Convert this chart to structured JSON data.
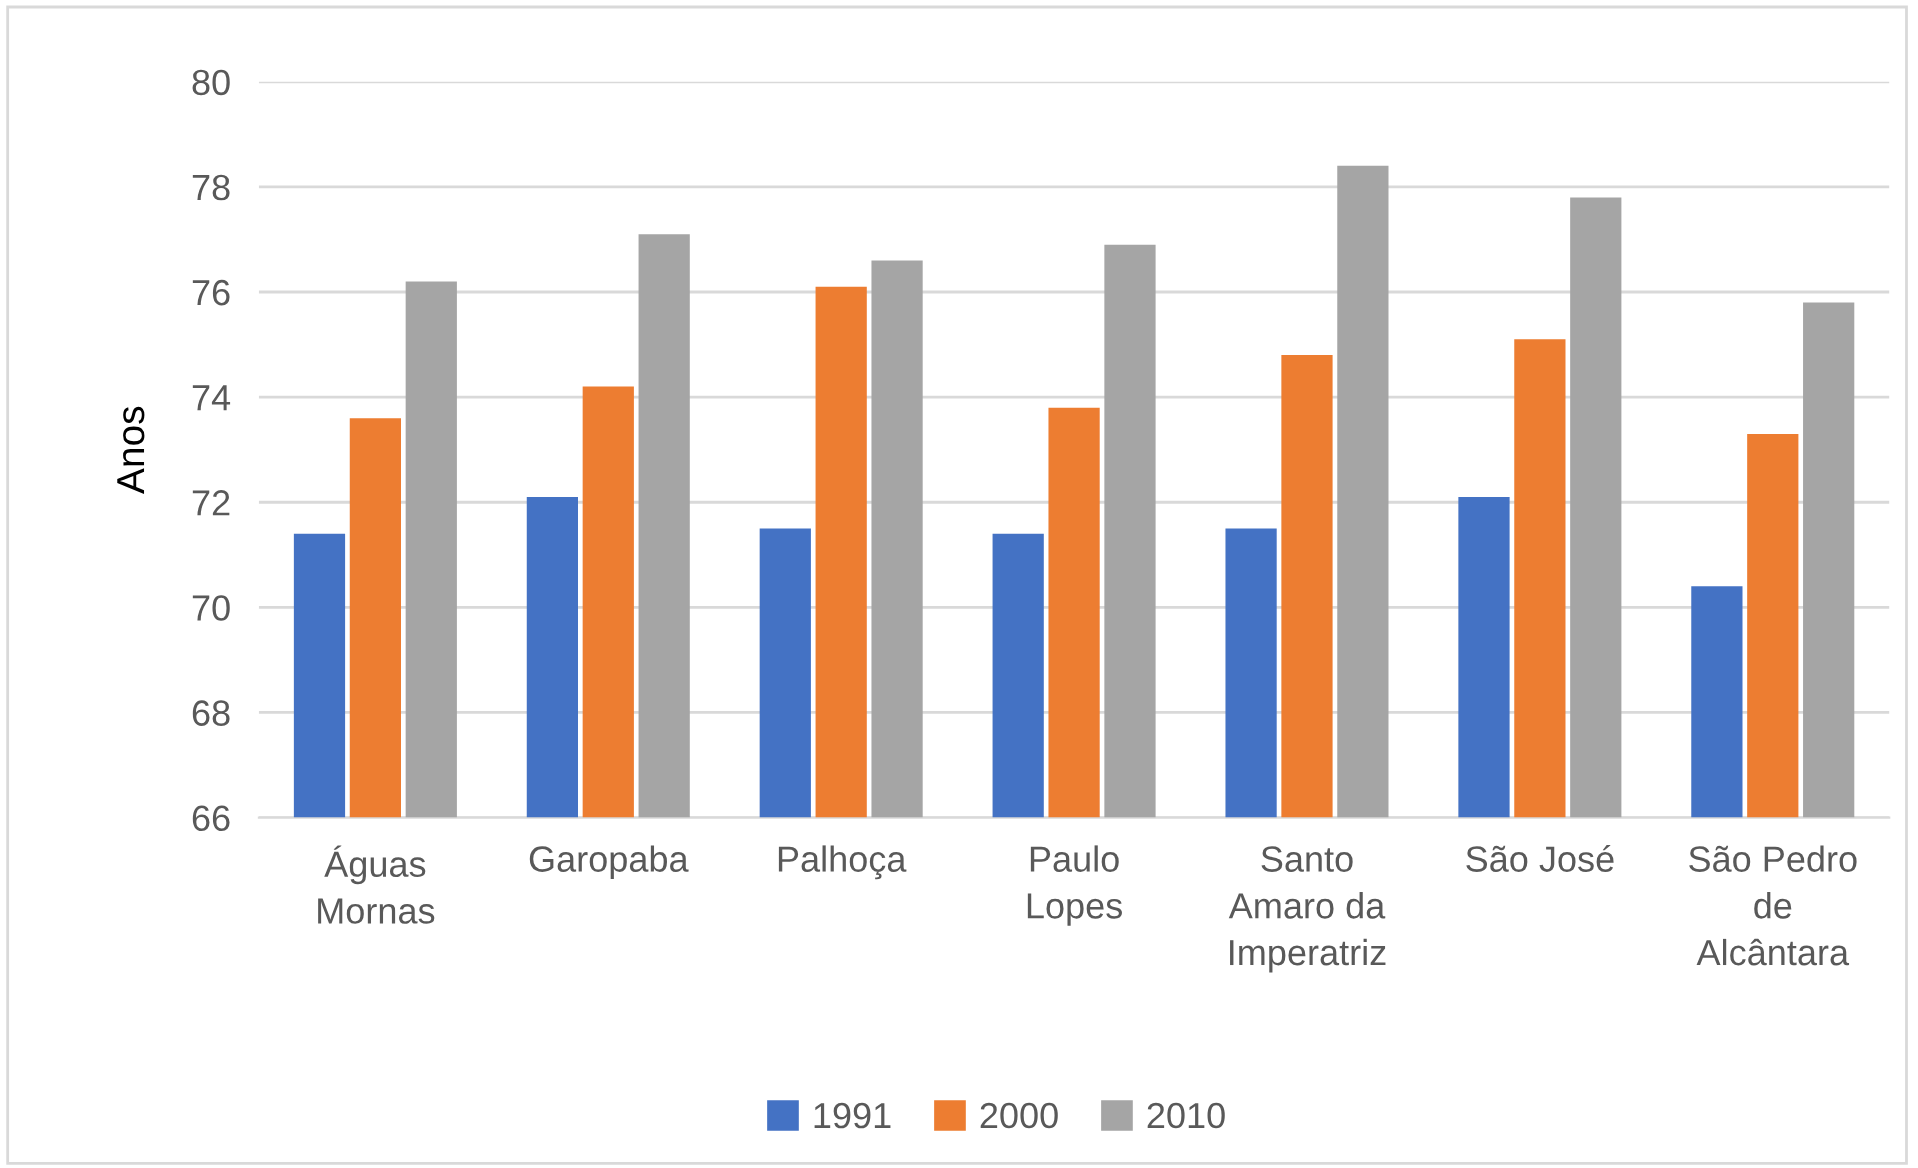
{
  "chart_data": {
    "type": "bar",
    "ylabel": "Anos",
    "categories": [
      "Águas\nMornas",
      "Garopaba",
      "Palhoça",
      "Paulo\nLopes",
      "Santo\nAmaro da\nImperatriz",
      "São José",
      "São Pedro\nde\nAlcântara"
    ],
    "series": [
      {
        "name": "1991",
        "color": "#4472c4",
        "values": [
          71.4,
          72.1,
          71.5,
          71.4,
          71.5,
          72.1,
          70.4
        ]
      },
      {
        "name": "2000",
        "color": "#ed7d31",
        "values": [
          73.6,
          74.2,
          76.1,
          73.8,
          74.8,
          75.1,
          73.3
        ]
      },
      {
        "name": "2010",
        "color": "#a5a5a5",
        "values": [
          76.2,
          77.1,
          76.6,
          76.9,
          78.4,
          77.8,
          75.8
        ]
      }
    ],
    "ylim": [
      66,
      80
    ],
    "yticks": [
      66,
      68,
      70,
      72,
      74,
      76,
      78,
      80
    ],
    "grid": "y",
    "legend": "bottom"
  }
}
